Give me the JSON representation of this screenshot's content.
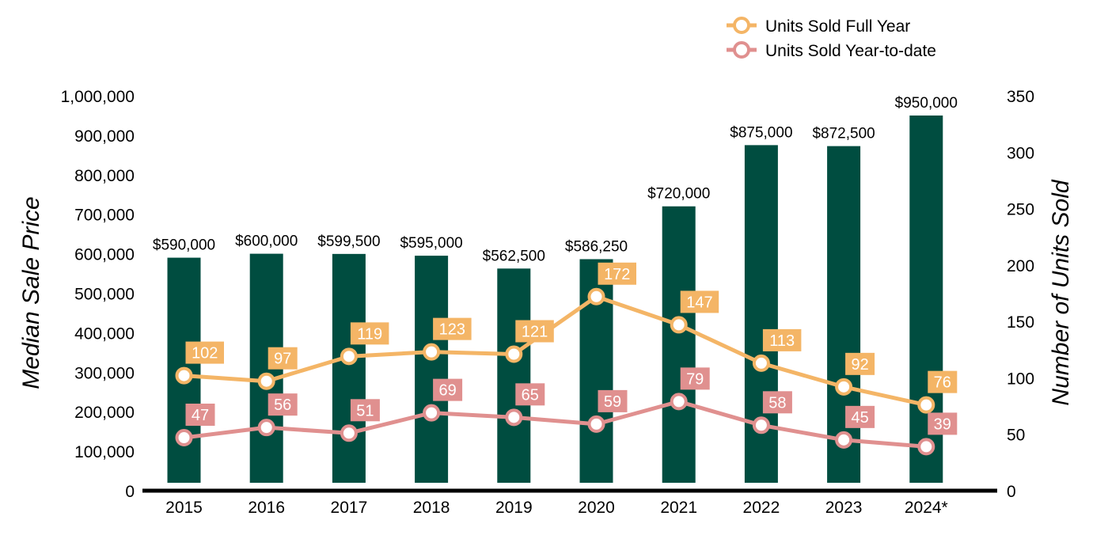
{
  "chart_data": {
    "type": "bar",
    "categories": [
      "2015",
      "2016",
      "2017",
      "2018",
      "2019",
      "2020",
      "2021",
      "2022",
      "2023",
      "2024*"
    ],
    "bar_series": {
      "values": [
        590000,
        600000,
        599500,
        595000,
        562500,
        586250,
        720000,
        875000,
        872500,
        950000
      ],
      "labels": [
        "$590,000",
        "$600,000",
        "$599,500",
        "$595,000",
        "$562,500",
        "$586,250",
        "$720,000",
        "$875,000",
        "$872,500",
        "$950,000"
      ],
      "color": "#004D40",
      "axis": "left"
    },
    "line_series": [
      {
        "name": "Units Sold Full Year",
        "values": [
          102,
          97,
          119,
          123,
          121,
          172,
          147,
          113,
          92,
          76
        ],
        "color": "#F4B566",
        "axis": "right"
      },
      {
        "name": "Units Sold Year-to-date",
        "values": [
          47,
          56,
          51,
          69,
          65,
          59,
          79,
          58,
          45,
          39
        ],
        "color": "#E0908F",
        "axis": "right"
      }
    ],
    "ylabel_left": "Median Sale Price",
    "ylabel_right": "Number of Units Sold",
    "ylim_left": [
      0,
      1000000
    ],
    "ylim_right": [
      0,
      350
    ],
    "yticks_left": [
      "0",
      "100,000",
      "200,000",
      "300,000",
      "400,000",
      "500,000",
      "600,000",
      "700,000",
      "800,000",
      "900,000",
      "1,000,000"
    ],
    "yticks_right": [
      "0",
      "50",
      "100",
      "150",
      "200",
      "250",
      "300",
      "350"
    ],
    "legend_position": "top-right",
    "grid": false
  }
}
